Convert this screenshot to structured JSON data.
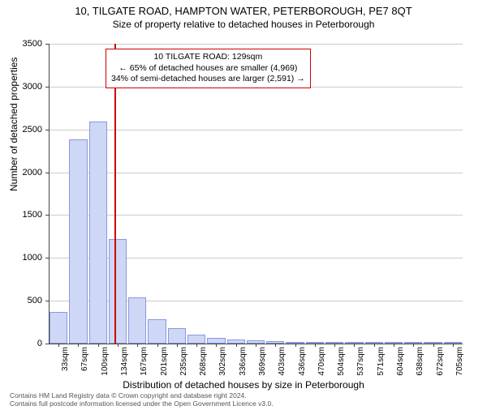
{
  "title": "10, TILGATE ROAD, HAMPTON WATER, PETERBOROUGH, PE7 8QT",
  "subtitle": "Size of property relative to detached houses in Peterborough",
  "ylabel": "Number of detached properties",
  "xlabel": "Distribution of detached houses by size in Peterborough",
  "footer_line1": "Contains HM Land Registry data © Crown copyright and database right 2024.",
  "footer_line2": "Contains full postcode information licensed under the Open Government Licence v3.0.",
  "chart": {
    "type": "bar",
    "ylim": [
      0,
      3500
    ],
    "ytick_step": 500,
    "bar_color": "#cfd7f6",
    "bar_border": "#8899dd",
    "grid_color": "#cccccc",
    "ref_line_color": "#cc0000",
    "ref_line_x": 129,
    "categories": [
      "33sqm",
      "67sqm",
      "100sqm",
      "134sqm",
      "167sqm",
      "201sqm",
      "235sqm",
      "268sqm",
      "302sqm",
      "336sqm",
      "369sqm",
      "403sqm",
      "436sqm",
      "470sqm",
      "504sqm",
      "537sqm",
      "571sqm",
      "604sqm",
      "638sqm",
      "672sqm",
      "705sqm"
    ],
    "values": [
      370,
      2380,
      2590,
      1220,
      540,
      280,
      180,
      100,
      70,
      50,
      40,
      30,
      0,
      0,
      0,
      0,
      0,
      0,
      0,
      0,
      0
    ]
  },
  "annotation": {
    "line1": "10 TILGATE ROAD: 129sqm",
    "line2": "← 65% of detached houses are smaller (4,969)",
    "line3": "34% of semi-detached houses are larger (2,591) →"
  },
  "style": {
    "title_fontsize": 13,
    "subtitle_fontsize": 12,
    "axis_fontsize": 12,
    "tick_fontsize": 11,
    "annotation_fontsize": 10.5,
    "footer_fontsize": 8.5,
    "background_color": "#ffffff"
  }
}
